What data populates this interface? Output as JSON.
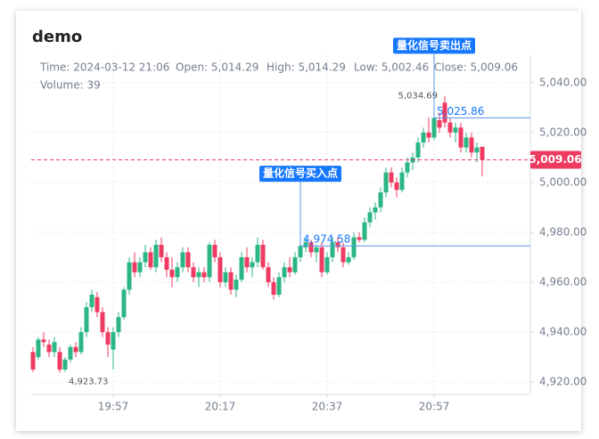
{
  "chart_data": {
    "type": "candlestick",
    "title": "demo",
    "tooltip": {
      "time": "Time: 2024-03-12 21:06",
      "open": "Open: 5,014.29",
      "high": "High: 5,014.29",
      "low": "Low: 5,002.46",
      "close": "Close: 5,009.06",
      "volume": "Volume: 39"
    },
    "x": [
      "19:42",
      "19:43",
      "19:44",
      "19:45",
      "19:46",
      "19:47",
      "19:48",
      "19:49",
      "19:50",
      "19:51",
      "19:52",
      "19:53",
      "19:54",
      "19:55",
      "19:56",
      "19:57",
      "19:58",
      "19:59",
      "20:00",
      "20:01",
      "20:02",
      "20:03",
      "20:04",
      "20:05",
      "20:06",
      "20:07",
      "20:08",
      "20:09",
      "20:10",
      "20:11",
      "20:12",
      "20:13",
      "20:14",
      "20:15",
      "20:16",
      "20:17",
      "20:18",
      "20:19",
      "20:20",
      "20:21",
      "20:22",
      "20:23",
      "20:24",
      "20:25",
      "20:26",
      "20:27",
      "20:28",
      "20:29",
      "20:30",
      "20:31",
      "20:32",
      "20:33",
      "20:34",
      "20:35",
      "20:36",
      "20:37",
      "20:38",
      "20:39",
      "20:40",
      "20:41",
      "20:42",
      "20:43",
      "20:44",
      "20:45",
      "20:46",
      "20:47",
      "20:48",
      "20:49",
      "20:50",
      "20:51",
      "20:52",
      "20:53",
      "20:54",
      "20:55",
      "20:56",
      "20:57",
      "20:58",
      "20:59",
      "21:00",
      "21:01",
      "21:02",
      "21:03",
      "21:04",
      "21:05",
      "21:06"
    ],
    "open": [
      4932,
      4930,
      4937,
      4935,
      4932,
      4932,
      4925,
      4929,
      4934,
      4932,
      4940,
      4950,
      4954,
      4948,
      4940,
      4933,
      4940,
      4946,
      4957,
      4968,
      4964,
      4968,
      4972,
      4966,
      4975,
      4970,
      4965,
      4962,
      4966,
      4972,
      4966,
      4962,
      4964,
      4962,
      4975,
      4970,
      4960,
      4964,
      4957,
      4961,
      4970,
      4966,
      4968,
      4975,
      4966,
      4960,
      4955,
      4962,
      4966,
      4964,
      4970,
      4974,
      4976,
      4972,
      4974,
      4964,
      4970,
      4976,
      4974,
      4968,
      4970,
      4978,
      4977,
      4984,
      4988,
      4990,
      4996,
      5004,
      5000,
      4997,
      5004,
      5008,
      5010,
      5016,
      5020,
      5018,
      5025,
      5032,
      5024,
      5020,
      5022,
      5014,
      5018,
      5012,
      5014.29
    ],
    "high": [
      4934,
      4938,
      4940,
      4937,
      4938,
      4934,
      4930,
      4935,
      4936,
      4942,
      4952,
      4957,
      4956,
      4950,
      4942,
      4942,
      4948,
      4958,
      4970,
      4972,
      4970,
      4975,
      4974,
      4977,
      4978,
      4972,
      4970,
      4968,
      4974,
      4974,
      4968,
      4966,
      4966,
      4976,
      4977,
      4972,
      4966,
      4966,
      4963,
      4972,
      4974,
      4970,
      4978,
      4977,
      4968,
      4962,
      4964,
      4968,
      4970,
      4972,
      4976,
      4978,
      4977,
      4975,
      4976,
      4972,
      4978,
      4978,
      4976,
      4972,
      4980,
      4980,
      4986,
      4990,
      4992,
      4998,
      5006,
      5006,
      5002,
      5006,
      5010,
      5012,
      5018,
      5022,
      5026,
      5026,
      5028,
      5034.69,
      5026,
      5024,
      5024,
      5020,
      5020,
      5016,
      5014.29
    ],
    "low": [
      4924,
      4929,
      4934,
      4930,
      4930,
      4923.73,
      4924,
      4928,
      4930,
      4931,
      4938,
      4948,
      4946,
      4938,
      4930,
      4925,
      4938,
      4945,
      4955,
      4962,
      4962,
      4966,
      4965,
      4964,
      4968,
      4962,
      4958,
      4960,
      4964,
      4964,
      4960,
      4958,
      4960,
      4960,
      4968,
      4958,
      4958,
      4955,
      4954,
      4960,
      4964,
      4962,
      4966,
      4965,
      4958,
      4953,
      4954,
      4960,
      4962,
      4963,
      4968,
      4972,
      4970,
      4968,
      4962,
      4963,
      4968,
      4972,
      4966,
      4967,
      4969,
      4976,
      4976,
      4982,
      4985,
      4988,
      4994,
      4998,
      4994,
      4996,
      5002,
      5005,
      5008,
      5014,
      5016,
      5017,
      5020,
      5022,
      5018,
      5016,
      5012,
      5012,
      5010,
      5008,
      5002.46
    ],
    "close": [
      4925,
      4937,
      4936,
      4932,
      4936,
      4925,
      4929,
      4934,
      4932,
      4940,
      4950,
      4955,
      4948,
      4940,
      4935,
      4940,
      4946,
      4957,
      4968,
      4964,
      4968,
      4972,
      4966,
      4975,
      4970,
      4965,
      4962,
      4966,
      4972,
      4966,
      4962,
      4964,
      4962,
      4975,
      4970,
      4960,
      4964,
      4957,
      4961,
      4970,
      4966,
      4968,
      4975,
      4966,
      4960,
      4955,
      4962,
      4966,
      4964,
      4970,
      4974.58,
      4976,
      4972,
      4974,
      4964,
      4970,
      4976,
      4974,
      4968,
      4970,
      4978,
      4977,
      4984,
      4988,
      4990,
      4996,
      5004,
      5000,
      4997,
      5004,
      5008,
      5010,
      5016,
      5020,
      5018,
      5025.86,
      5022,
      5024,
      5020,
      5022,
      5014,
      5018,
      5012,
      5014,
      5009.06
    ],
    "up_color": "#2bb684",
    "down_color": "#ef3b62",
    "ylim": [
      4915,
      5051
    ],
    "yticks": [
      {
        "value": 4920,
        "label": "4,920.00"
      },
      {
        "value": 4940,
        "label": "4,940.00"
      },
      {
        "value": 4960,
        "label": "4,960.00"
      },
      {
        "value": 4980,
        "label": "4,980.00"
      },
      {
        "value": 5000,
        "label": "5,000.00"
      },
      {
        "value": 5020,
        "label": "5,020.00"
      },
      {
        "value": 5040,
        "label": "5,040.00"
      }
    ],
    "xticks": [
      "19:57",
      "20:17",
      "20:37",
      "20:57"
    ],
    "grid": true,
    "max": {
      "value": 5034.69,
      "label": "5,034.69",
      "index": 77
    },
    "min": {
      "value": 4923.73,
      "label": "4,923.73",
      "index": 5
    },
    "last": {
      "value": 5009.06,
      "label": "5,009.06"
    },
    "signals": [
      {
        "text": "量化信号买入点",
        "value": 4974.58,
        "label": "4,974.58",
        "index": 50
      },
      {
        "text": "量化信号卖出点",
        "value": 5025.86,
        "label": "5,025.86",
        "index": 75
      }
    ]
  }
}
